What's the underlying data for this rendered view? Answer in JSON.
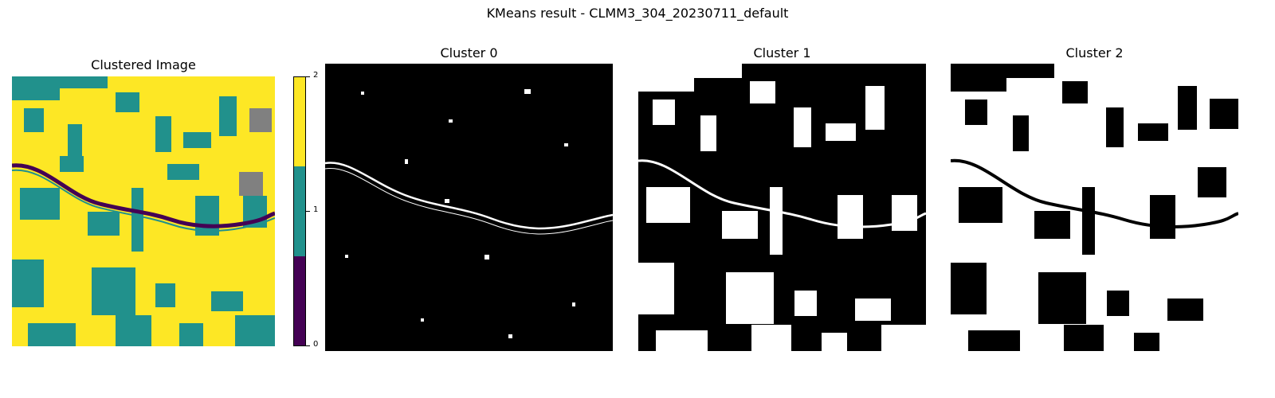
{
  "figure": {
    "suptitle": "KMeans result - CLMM3_304_20230711_default"
  },
  "panels": {
    "clustered": {
      "title": "Clustered Image"
    },
    "cluster0": {
      "title": "Cluster 0"
    },
    "cluster1": {
      "title": "Cluster 1"
    },
    "cluster2": {
      "title": "Cluster 2"
    }
  },
  "colorbar": {
    "ticks": [
      "0",
      "1",
      "2"
    ],
    "colors": {
      "c0": "#440154",
      "c1": "#21918c",
      "c2": "#fde725",
      "nodata": "#808080"
    }
  }
}
